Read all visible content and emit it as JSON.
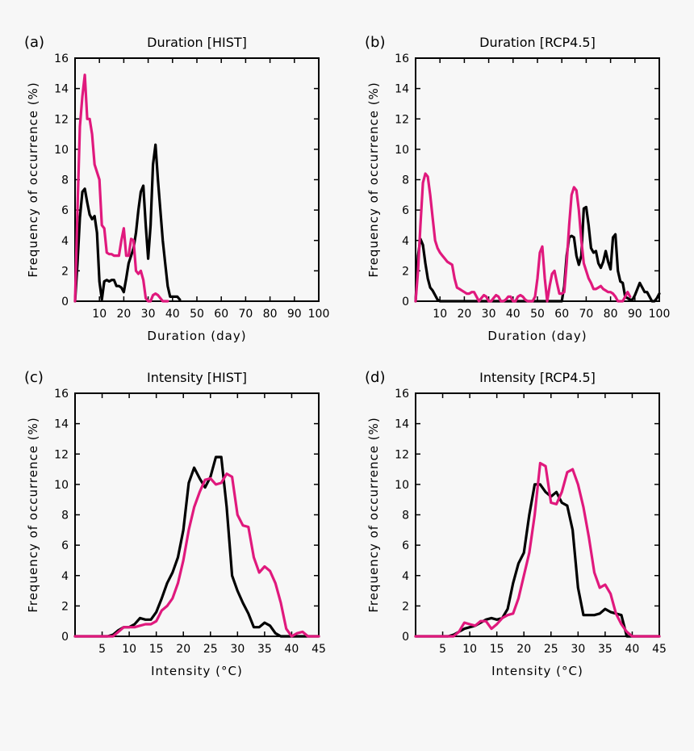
{
  "colors": {
    "hist_series": "#000000",
    "rcp_series": "#e0197d"
  },
  "chart_data": [
    {
      "type": "line",
      "panel_label": "(a)",
      "title": "Duration [HIST]",
      "xlabel": "Duration (day)",
      "ylabel": "Frequency of occurrence (%)",
      "xlim": [
        0,
        100
      ],
      "ylim": [
        0,
        16
      ],
      "xticks": [
        10,
        20,
        30,
        40,
        50,
        60,
        70,
        80,
        90,
        100
      ],
      "yticks": [
        0,
        2,
        4,
        6,
        8,
        10,
        12,
        14,
        16
      ],
      "series": [
        {
          "name": "black",
          "color": "#000000",
          "x": [
            0,
            1,
            2,
            3,
            4,
            5,
            6,
            7,
            8,
            9,
            10,
            11,
            12,
            13,
            14,
            15,
            16,
            17,
            18,
            19,
            20,
            21,
            22,
            23,
            24,
            25,
            26,
            27,
            28,
            29,
            30,
            31,
            32,
            33,
            34,
            35,
            36,
            37,
            38,
            39,
            40,
            41,
            42,
            43
          ],
          "y": [
            0,
            2.5,
            5.5,
            7.2,
            7.4,
            6.5,
            5.7,
            5.4,
            5.6,
            4.5,
            1.3,
            0.1,
            1.3,
            1.4,
            1.3,
            1.4,
            1.4,
            1.0,
            1.0,
            0.9,
            0.6,
            1.5,
            2.5,
            3.0,
            3.5,
            4.5,
            6.0,
            7.2,
            7.6,
            5.0,
            2.8,
            5.0,
            9.0,
            10.3,
            8.0,
            6.0,
            4.0,
            2.5,
            1.0,
            0.3,
            0.3,
            0.3,
            0.3,
            0.1
          ]
        },
        {
          "name": "magenta",
          "color": "#e0197d",
          "x": [
            0,
            1,
            2,
            3,
            4,
            5,
            6,
            7,
            8,
            9,
            10,
            11,
            12,
            13,
            14,
            15,
            16,
            17,
            18,
            19,
            20,
            21,
            22,
            23,
            24,
            25,
            26,
            27,
            28,
            29,
            30,
            31,
            32,
            33,
            34,
            35,
            36,
            37,
            38
          ],
          "y": [
            0,
            6.0,
            11.5,
            13.5,
            14.9,
            12.0,
            12.0,
            11.0,
            9.0,
            8.5,
            8.0,
            5.0,
            4.8,
            3.2,
            3.1,
            3.1,
            3.0,
            3.0,
            3.0,
            4.0,
            4.8,
            3.0,
            3.0,
            4.1,
            4.0,
            2.0,
            1.8,
            2.0,
            1.4,
            0.2,
            0,
            0,
            0.4,
            0.5,
            0.4,
            0.2,
            0,
            0,
            0
          ]
        }
      ]
    },
    {
      "type": "line",
      "panel_label": "(b)",
      "title": "Duration [RCP4.5]",
      "xlabel": "Duration (day)",
      "ylabel": "Frequency of occurrence (%)",
      "xlim": [
        0,
        100
      ],
      "ylim": [
        0,
        16
      ],
      "xticks": [
        10,
        20,
        30,
        40,
        50,
        60,
        70,
        80,
        90,
        100
      ],
      "yticks": [
        0,
        2,
        4,
        6,
        8,
        10,
        12,
        14,
        16
      ],
      "series": [
        {
          "name": "black",
          "color": "#000000",
          "x": [
            0,
            1,
            2,
            3,
            4,
            5,
            6,
            7,
            8,
            9,
            10,
            11,
            60,
            61,
            62,
            63,
            64,
            65,
            66,
            67,
            68,
            69,
            70,
            71,
            72,
            73,
            74,
            75,
            76,
            77,
            78,
            79,
            80,
            81,
            82,
            83,
            84,
            85,
            86,
            87,
            88,
            89,
            90,
            91,
            92,
            93,
            94,
            95,
            96,
            97,
            98,
            99,
            100
          ],
          "y": [
            0,
            3.0,
            4.1,
            3.7,
            2.5,
            1.5,
            0.9,
            0.7,
            0.4,
            0.1,
            0,
            0,
            0,
            1.0,
            3.0,
            4.2,
            4.3,
            4.2,
            3.0,
            2.4,
            3.0,
            6.1,
            6.2,
            5.0,
            3.5,
            3.2,
            3.3,
            2.5,
            2.2,
            2.6,
            3.3,
            2.6,
            2.1,
            4.2,
            4.4,
            2.0,
            1.3,
            1.2,
            0.3,
            0.2,
            0.1,
            0.1,
            0.4,
            0.8,
            1.2,
            0.9,
            0.6,
            0.6,
            0.3,
            0,
            0,
            0.2,
            0.5
          ]
        },
        {
          "name": "magenta",
          "color": "#e0197d",
          "x": [
            0,
            1,
            2,
            3,
            4,
            5,
            6,
            7,
            8,
            9,
            10,
            11,
            12,
            13,
            14,
            15,
            16,
            17,
            18,
            19,
            20,
            21,
            22,
            23,
            24,
            25,
            26,
            27,
            28,
            29,
            30,
            31,
            32,
            33,
            34,
            35,
            36,
            37,
            38,
            39,
            40,
            41,
            42,
            43,
            44,
            45,
            46,
            47,
            48,
            49,
            50,
            51,
            52,
            53,
            54,
            55,
            56,
            57,
            58,
            59,
            60,
            61,
            62,
            63,
            64,
            65,
            66,
            67,
            68,
            69,
            70,
            71,
            72,
            73,
            74,
            75,
            76,
            77,
            78,
            79,
            80,
            81,
            82,
            83,
            84,
            85,
            86,
            87,
            88
          ],
          "y": [
            0,
            2.0,
            5.0,
            7.8,
            8.4,
            8.2,
            7.0,
            5.5,
            4.0,
            3.5,
            3.2,
            3.0,
            2.8,
            2.6,
            2.5,
            2.4,
            1.5,
            0.9,
            0.8,
            0.7,
            0.6,
            0.5,
            0.5,
            0.6,
            0.6,
            0.3,
            0,
            0.2,
            0.4,
            0.3,
            0,
            0,
            0.2,
            0.4,
            0.3,
            0,
            0,
            0.1,
            0.3,
            0.3,
            0,
            0,
            0.3,
            0.4,
            0.3,
            0.1,
            0,
            0,
            0,
            0.3,
            1.5,
            3.2,
            3.6,
            1.5,
            0,
            1.0,
            1.8,
            2.0,
            1.2,
            0.5,
            0.5,
            0.6,
            2.5,
            5.0,
            7.0,
            7.5,
            7.3,
            6.0,
            4.0,
            2.5,
            2.0,
            1.5,
            1.2,
            0.8,
            0.8,
            0.9,
            1.0,
            0.8,
            0.7,
            0.6,
            0.6,
            0.5,
            0.3,
            0,
            0,
            0,
            0.3,
            0.6,
            0.3
          ]
        }
      ]
    },
    {
      "type": "line",
      "panel_label": "(c)",
      "title": "Intensity [HIST]",
      "xlabel": "Intensity (°C)",
      "ylabel": "Frequency of occurrence (%)",
      "xlim": [
        0,
        45
      ],
      "ylim": [
        0,
        16
      ],
      "xticks": [
        5,
        10,
        15,
        20,
        25,
        30,
        35,
        40,
        45
      ],
      "yticks": [
        0,
        2,
        4,
        6,
        8,
        10,
        12,
        14,
        16
      ],
      "series": [
        {
          "name": "black",
          "color": "#000000",
          "x": [
            0,
            5,
            6,
            7,
            8,
            9,
            10,
            11,
            12,
            13,
            14,
            15,
            16,
            17,
            18,
            19,
            20,
            21,
            22,
            23,
            24,
            25,
            26,
            27,
            28,
            29,
            30,
            31,
            32,
            33,
            34,
            35,
            36,
            37,
            38,
            45
          ],
          "y": [
            0,
            0,
            0,
            0.1,
            0.4,
            0.6,
            0.6,
            0.8,
            1.2,
            1.1,
            1.1,
            1.6,
            2.5,
            3.5,
            4.2,
            5.2,
            7.0,
            10.1,
            11.1,
            10.4,
            9.8,
            10.5,
            11.8,
            11.8,
            8.5,
            4.0,
            3.0,
            2.2,
            1.5,
            0.6,
            0.6,
            0.9,
            0.7,
            0.2,
            0,
            0
          ]
        },
        {
          "name": "magenta",
          "color": "#e0197d",
          "x": [
            0,
            7,
            8,
            9,
            10,
            11,
            12,
            13,
            14,
            15,
            16,
            17,
            18,
            19,
            20,
            21,
            22,
            23,
            24,
            25,
            26,
            27,
            28,
            29,
            30,
            31,
            32,
            33,
            34,
            35,
            36,
            37,
            38,
            39,
            40,
            41,
            42,
            43,
            45
          ],
          "y": [
            0,
            0,
            0.3,
            0.6,
            0.6,
            0.6,
            0.7,
            0.8,
            0.8,
            1.0,
            1.7,
            2.0,
            2.5,
            3.5,
            5.0,
            7.0,
            8.5,
            9.5,
            10.3,
            10.4,
            10.0,
            10.1,
            10.7,
            10.5,
            8.0,
            7.3,
            7.2,
            5.2,
            4.2,
            4.6,
            4.3,
            3.5,
            2.2,
            0.5,
            0,
            0.2,
            0.3,
            0,
            0
          ]
        }
      ]
    },
    {
      "type": "line",
      "panel_label": "(d)",
      "title": "Intensity [RCP4.5]",
      "xlabel": "Intensity (°C)",
      "ylabel": "Frequency of occurrence (%)",
      "xlim": [
        0,
        45
      ],
      "ylim": [
        0,
        16
      ],
      "xticks": [
        5,
        10,
        15,
        20,
        25,
        30,
        35,
        40,
        45
      ],
      "yticks": [
        0,
        2,
        4,
        6,
        8,
        10,
        12,
        14,
        16
      ],
      "series": [
        {
          "name": "black",
          "color": "#000000",
          "x": [
            0,
            5,
            6,
            7,
            8,
            9,
            10,
            11,
            12,
            13,
            14,
            15,
            16,
            17,
            18,
            19,
            20,
            21,
            22,
            23,
            24,
            25,
            26,
            27,
            28,
            29,
            30,
            31,
            32,
            33,
            34,
            35,
            36,
            37,
            38,
            39,
            45
          ],
          "y": [
            0,
            0,
            0,
            0.1,
            0.3,
            0.5,
            0.6,
            0.7,
            0.9,
            1.1,
            1.2,
            1.1,
            1.2,
            1.8,
            3.5,
            4.8,
            5.5,
            8.0,
            10.0,
            10.0,
            9.5,
            9.2,
            9.5,
            8.8,
            8.6,
            7.0,
            3.2,
            1.4,
            1.4,
            1.4,
            1.5,
            1.8,
            1.6,
            1.5,
            1.4,
            0,
            0
          ]
        },
        {
          "name": "magenta",
          "color": "#e0197d",
          "x": [
            0,
            6,
            7,
            8,
            9,
            10,
            11,
            12,
            13,
            14,
            15,
            16,
            17,
            18,
            19,
            20,
            21,
            22,
            23,
            24,
            25,
            26,
            27,
            28,
            29,
            30,
            31,
            32,
            33,
            34,
            35,
            36,
            37,
            38,
            39,
            40,
            45
          ],
          "y": [
            0,
            0,
            0,
            0.3,
            0.9,
            0.8,
            0.7,
            1.0,
            1.0,
            0.5,
            0.8,
            1.2,
            1.4,
            1.5,
            2.5,
            4.0,
            5.5,
            8.0,
            11.4,
            11.2,
            8.8,
            8.7,
            9.5,
            10.8,
            11.0,
            10.0,
            8.5,
            6.5,
            4.2,
            3.2,
            3.4,
            2.8,
            1.5,
            0.8,
            0.3,
            0,
            0
          ]
        }
      ]
    }
  ]
}
